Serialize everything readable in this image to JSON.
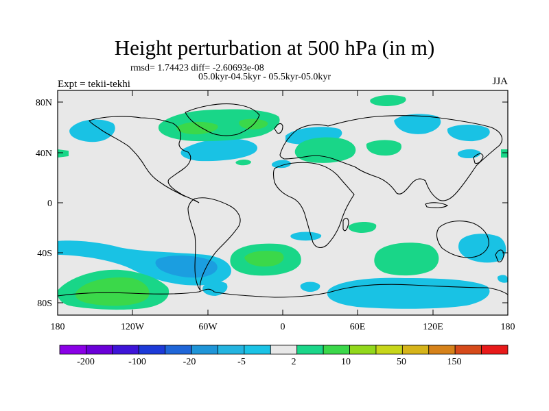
{
  "title": "Height perturbation at 500 hPa (in m)",
  "subtitle_stats": "rmsd= 1.74423 diff= -2.60693e-08",
  "subtitle_period": "05.0kyr-04.5kyr - 05.5kyr-05.0kyr",
  "left_label": "Expt = tekii-tekhi",
  "right_label": "JJA",
  "y_ticks": [
    "80N",
    "40N",
    "0",
    "40S",
    "80S"
  ],
  "x_ticks": [
    "180",
    "120W",
    "60W",
    "0",
    "60E",
    "120E",
    "180"
  ],
  "colorbar": {
    "labels": [
      "-200",
      "-100",
      "-20",
      "-5",
      "2",
      "10",
      "50",
      "150"
    ],
    "colors": [
      "#8a00e6",
      "#6a00d8",
      "#3e14d8",
      "#1d3ad8",
      "#1f66d8",
      "#1f95d8",
      "#24b4e0",
      "#1bc3e6",
      "#e8e8e8",
      "#1bd689",
      "#3bd84a",
      "#92d81c",
      "#c7d61a",
      "#d6b41a",
      "#d6821a",
      "#d64a1a",
      "#e81a1a"
    ]
  },
  "colors": {
    "background": "#e8e8e8",
    "light_blue": "#19c2e4",
    "mid_blue": "#1b9ee0",
    "light_green": "#19d688",
    "mid_green": "#3bd84a"
  }
}
